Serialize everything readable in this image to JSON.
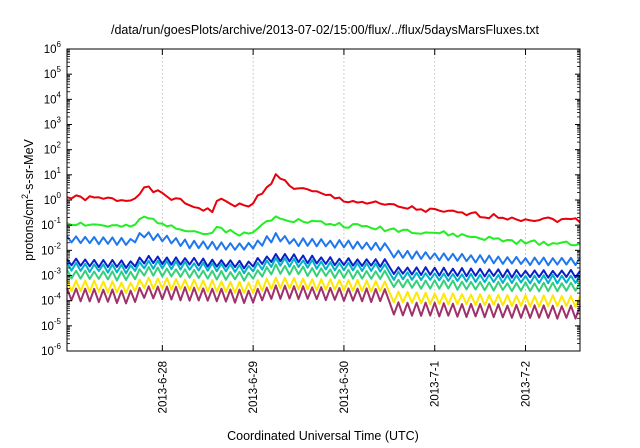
{
  "chart_data": {
    "type": "line",
    "title": "/data/run/goesPlots/archive/2013-07-02/15:00/flux/../flux/5daysMarsFluxes.txt",
    "xlabel": "Coordinated Universal Time (UTC)",
    "ylabel_parts": {
      "base": "protons/cm",
      "sup": "2",
      "rest": "-s-sr-MeV"
    },
    "y_scale": "log",
    "ylim_exponent": [
      -6,
      6
    ],
    "y_tick_base": "10",
    "y_tick_exponents": [
      "-6",
      "-5",
      "-4",
      "-3",
      "-2",
      "-1",
      "0",
      "1",
      "2",
      "3",
      "4",
      "5",
      "6"
    ],
    "x_range_days": [
      -1.05,
      4.6
    ],
    "x_ticks": [
      {
        "label": "2013-6-28",
        "day": 0
      },
      {
        "label": "2013-6-29",
        "day": 1
      },
      {
        "label": "2013-6-30",
        "day": 2
      },
      {
        "label": "2013-7-1",
        "day": 3
      },
      {
        "label": "2013-7-2",
        "day": 4
      }
    ],
    "grid": true,
    "sample_step_days": 0.05,
    "series": [
      {
        "color": "#e8000b",
        "log_base": [
          [
            -1.05,
            0.1
          ],
          [
            -0.35,
            0.0
          ],
          [
            -0.2,
            0.5
          ],
          [
            0.3,
            -0.2
          ],
          [
            0.55,
            -0.45
          ],
          [
            0.6,
            0.0
          ],
          [
            0.95,
            -0.3
          ],
          [
            1.25,
            0.95
          ],
          [
            1.45,
            0.5
          ],
          [
            2.0,
            0.0
          ],
          [
            3.0,
            -0.45
          ],
          [
            4.0,
            -0.75
          ],
          [
            4.6,
            -0.8
          ]
        ],
        "amp": 0.35,
        "period": 0.1,
        "seed": 1
      },
      {
        "color": "#22ee22",
        "log_base": [
          [
            -1.05,
            -0.9
          ],
          [
            -0.35,
            -1.1
          ],
          [
            -0.2,
            -0.7
          ],
          [
            0.3,
            -1.2
          ],
          [
            0.55,
            -1.4
          ],
          [
            0.6,
            -1.1
          ],
          [
            0.95,
            -1.4
          ],
          [
            1.25,
            -0.6
          ],
          [
            1.45,
            -0.8
          ],
          [
            2.0,
            -1.0
          ],
          [
            3.0,
            -1.3
          ],
          [
            4.0,
            -1.7
          ],
          [
            4.6,
            -1.7
          ]
        ],
        "amp": 0.35,
        "period": 0.1,
        "seed": 2
      },
      {
        "color": "#1f77ee",
        "log_base": [
          [
            -1.05,
            -1.7
          ],
          [
            -0.35,
            -1.8
          ],
          [
            -0.2,
            -1.5
          ],
          [
            0.3,
            -1.9
          ],
          [
            0.95,
            -2.0
          ],
          [
            1.25,
            -1.6
          ],
          [
            1.45,
            -1.8
          ],
          [
            2.0,
            -1.9
          ],
          [
            3.0,
            -2.1
          ],
          [
            4.0,
            -2.3
          ],
          [
            4.6,
            -2.3
          ]
        ],
        "amp": 0.55,
        "period": 0.1,
        "seed": 3
      },
      {
        "color": "#0a1fc8",
        "log_base": [
          [
            -1.05,
            -2.6
          ],
          [
            -0.35,
            -2.7
          ],
          [
            -0.2,
            -2.5
          ],
          [
            0.95,
            -2.7
          ],
          [
            1.25,
            -2.4
          ],
          [
            2.0,
            -2.6
          ],
          [
            3.0,
            -2.7
          ],
          [
            4.0,
            -2.8
          ],
          [
            4.6,
            -2.8
          ]
        ],
        "amp": 0.55,
        "period": 0.1,
        "seed": 4
      },
      {
        "color": "#00b4c8",
        "log_base": [
          [
            -1.05,
            -2.8
          ],
          [
            -0.35,
            -2.9
          ],
          [
            -0.2,
            -2.7
          ],
          [
            0.95,
            -2.9
          ],
          [
            1.25,
            -2.6
          ],
          [
            2.0,
            -2.8
          ],
          [
            3.0,
            -2.9
          ],
          [
            4.0,
            -3.0
          ],
          [
            4.6,
            -3.0
          ]
        ],
        "amp": 0.6,
        "period": 0.1,
        "seed": 5
      },
      {
        "color": "#35d07a",
        "log_base": [
          [
            -1.05,
            -3.1
          ],
          [
            -0.35,
            -3.2
          ],
          [
            -0.2,
            -3.0
          ],
          [
            0.95,
            -3.2
          ],
          [
            1.25,
            -2.9
          ],
          [
            2.0,
            -3.1
          ],
          [
            3.0,
            -3.2
          ],
          [
            4.0,
            -3.3
          ],
          [
            4.6,
            -3.3
          ]
        ],
        "amp": 0.65,
        "period": 0.1,
        "seed": 6
      },
      {
        "color": "#ffe800",
        "log_base": [
          [
            -1.05,
            -3.6
          ],
          [
            -0.35,
            -3.7
          ],
          [
            -0.2,
            -3.5
          ],
          [
            0.95,
            -3.7
          ],
          [
            1.25,
            -3.5
          ],
          [
            2.0,
            -3.6
          ],
          [
            3.0,
            -3.7
          ],
          [
            4.0,
            -3.8
          ],
          [
            4.6,
            -3.8
          ]
        ],
        "amp": 0.85,
        "period": 0.1,
        "seed": 7
      },
      {
        "color": "#a0306a",
        "log_base": [
          [
            -1.05,
            -4.0
          ],
          [
            -0.35,
            -4.1
          ],
          [
            -0.2,
            -3.9
          ],
          [
            0.95,
            -4.1
          ],
          [
            1.25,
            -3.9
          ],
          [
            2.0,
            -4.0
          ],
          [
            3.0,
            -4.1
          ],
          [
            4.0,
            -4.2
          ],
          [
            4.6,
            -4.2
          ]
        ],
        "amp": 1.0,
        "period": 0.1,
        "seed": 8
      }
    ]
  }
}
